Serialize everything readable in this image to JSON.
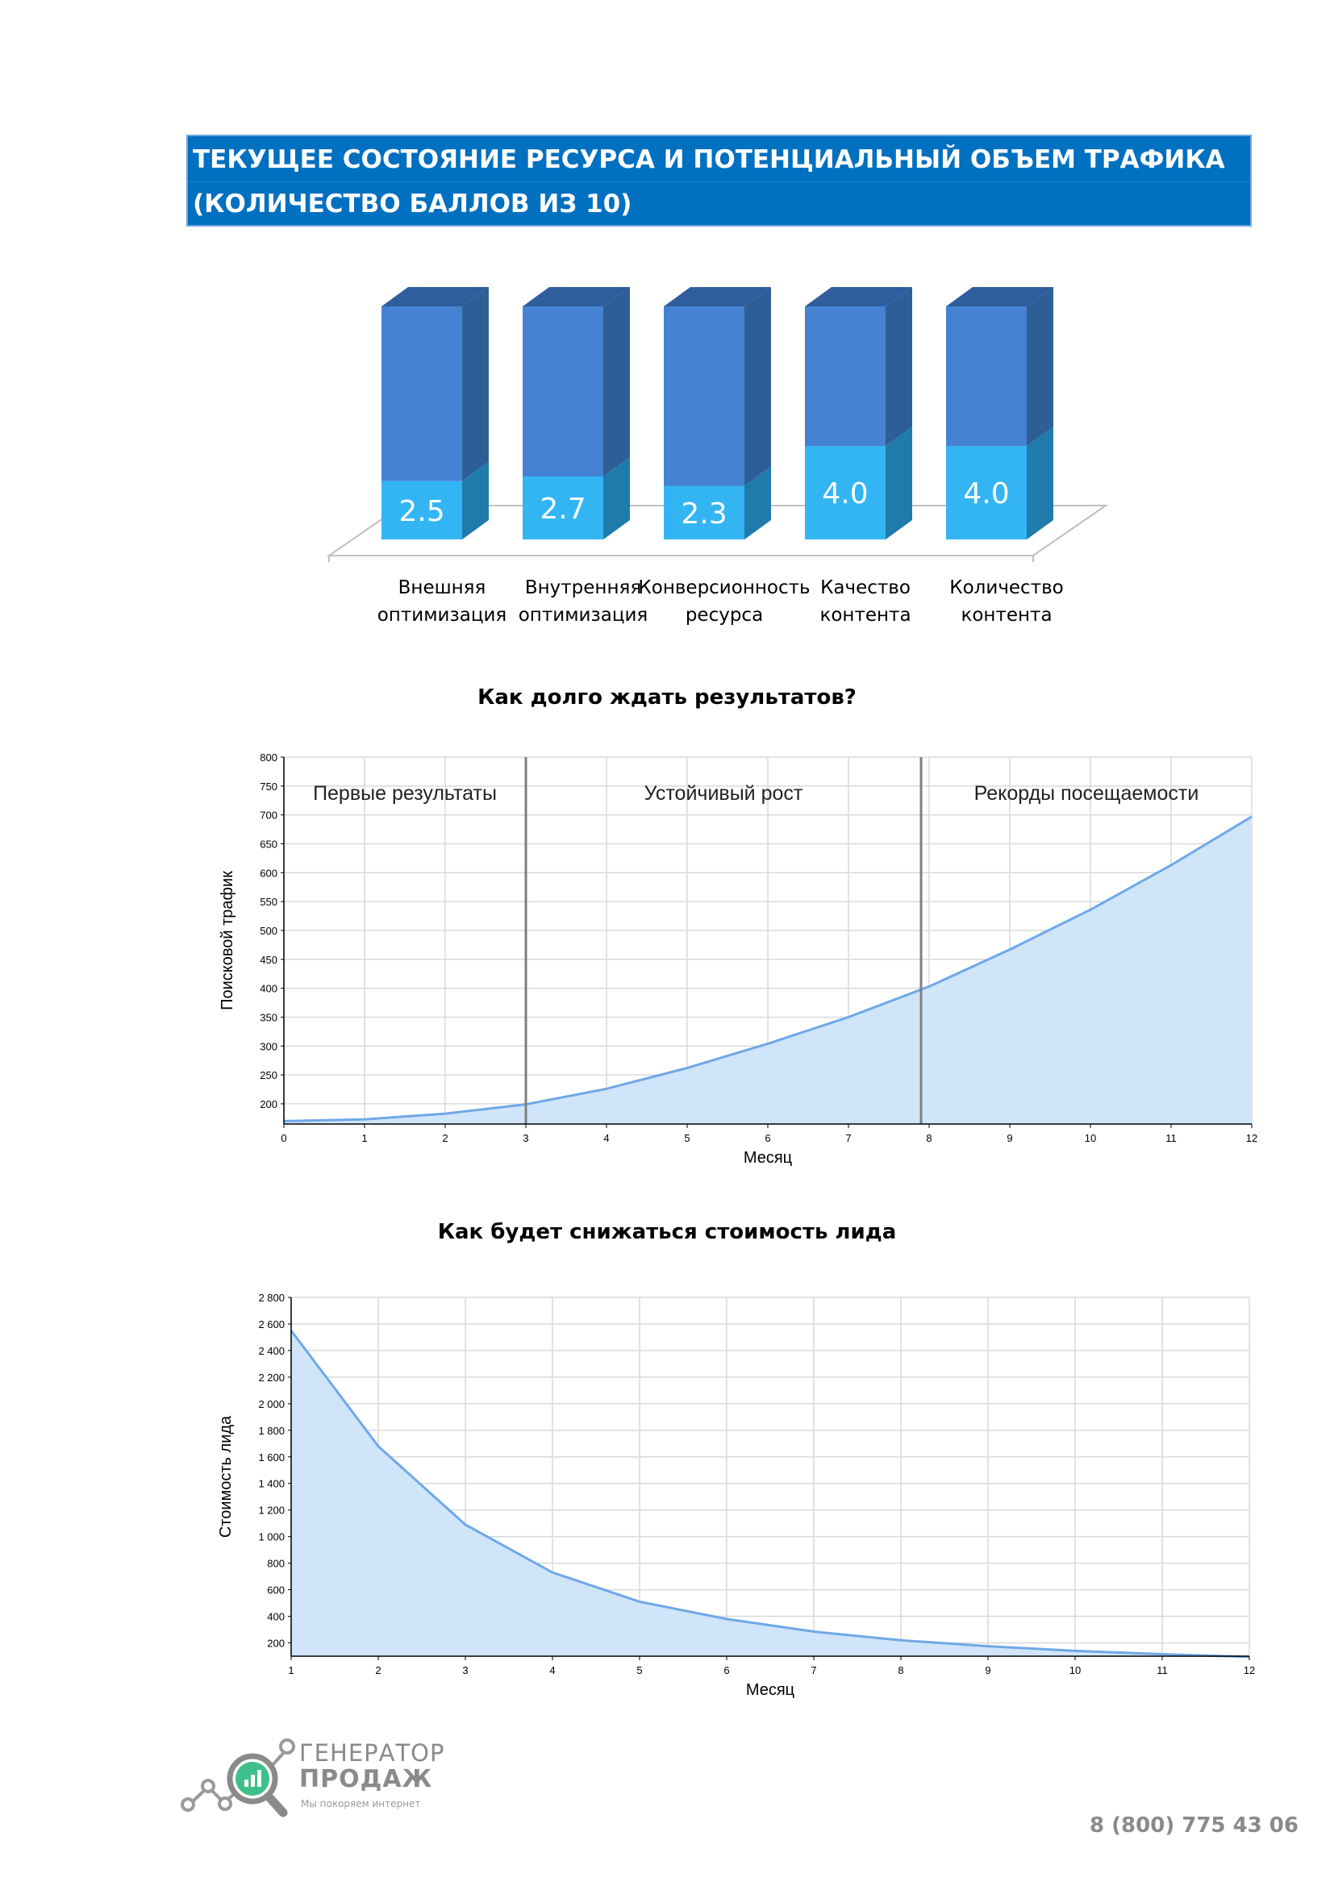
{
  "header": {
    "line1": "ТЕКУЩЕЕ СОСТОЯНИЕ РЕСУРСА И ПОТЕНЦИАЛЬНЫЙ ОБЪЕМ ТРАФИКА",
    "line2": "(КОЛИЧЕСТВО БАЛЛОВ ИЗ 10)"
  },
  "chart_data": [
    {
      "type": "bar",
      "title": "",
      "categories": [
        [
          "Внешняя",
          "оптимизация"
        ],
        [
          "Внутренняя",
          "оптимизация"
        ],
        [
          "Конверсионность",
          "ресурса"
        ],
        [
          "Качество",
          "контента"
        ],
        [
          "Количество",
          "контента"
        ]
      ],
      "values": [
        2.5,
        2.7,
        2.3,
        4.0,
        4.0
      ],
      "value_labels": [
        "2.5",
        "2.7",
        "2.3",
        "4.0",
        "4.0"
      ],
      "max": 10,
      "style": "3d-stacked",
      "colors": {
        "value": "#33b5f4",
        "value_side": "#1f7bab",
        "remainder": "#4582d1",
        "remainder_side": "#2d5f96",
        "top": "#2f5d9d"
      }
    },
    {
      "type": "area",
      "title": "Как долго ждать результатов?",
      "xlabel": "Месяц",
      "ylabel": "Поисковой трафик",
      "x": [
        0,
        1,
        2,
        3,
        4,
        5,
        6,
        7,
        8,
        9,
        10,
        11,
        12
      ],
      "values": [
        170,
        173,
        183,
        199,
        226,
        262,
        304,
        350,
        403,
        467,
        536,
        613,
        697
      ],
      "xlim": [
        0,
        12
      ],
      "ylim": [
        165,
        800
      ],
      "yticks": [
        200,
        250,
        300,
        350,
        400,
        450,
        500,
        550,
        600,
        650,
        700,
        750,
        800
      ],
      "xticks": [
        0,
        1,
        2,
        3,
        4,
        5,
        6,
        7,
        8,
        9,
        10,
        11,
        12
      ],
      "phase_dividers": [
        3,
        7.9
      ],
      "phases": [
        "Первые результаты",
        "Устойчивый рост",
        "Рекорды посещаемости"
      ],
      "grid": true,
      "colors": {
        "line": "#6fa8e6",
        "fill": "#d0e5f9"
      }
    },
    {
      "type": "area",
      "title": "Как будет снижаться стоимость лида",
      "xlabel": "Месяц",
      "ylabel": "Стоимость лида",
      "x": [
        1,
        2,
        3,
        4,
        5,
        6,
        7,
        8,
        9,
        10,
        11,
        12
      ],
      "values": [
        2550,
        1680,
        1090,
        730,
        510,
        380,
        285,
        220,
        175,
        140,
        115,
        95
      ],
      "xlim": [
        1,
        12
      ],
      "ylim": [
        100,
        2800
      ],
      "yticks": [
        200,
        400,
        600,
        800,
        1000,
        1200,
        1400,
        1600,
        1800,
        2000,
        2200,
        2400,
        2600,
        2800
      ],
      "ytick_labels": [
        "200",
        "400",
        "600",
        "800",
        "1 000",
        "1 200",
        "1 400",
        "1 600",
        "1 800",
        "2 000",
        "2 200",
        "2 400",
        "2 600",
        "2 800"
      ],
      "xticks": [
        1,
        2,
        3,
        4,
        5,
        6,
        7,
        8,
        9,
        10,
        11,
        12
      ],
      "grid": true,
      "colors": {
        "line": "#6fa8e6",
        "fill": "#d0e5f9"
      }
    }
  ],
  "footer": {
    "brand_line1": "ГЕНЕРАТОР",
    "brand_line2": "ПРОДАЖ",
    "tagline": "Мы покоряем интернет",
    "phone": "8 (800) 775 43 06"
  }
}
